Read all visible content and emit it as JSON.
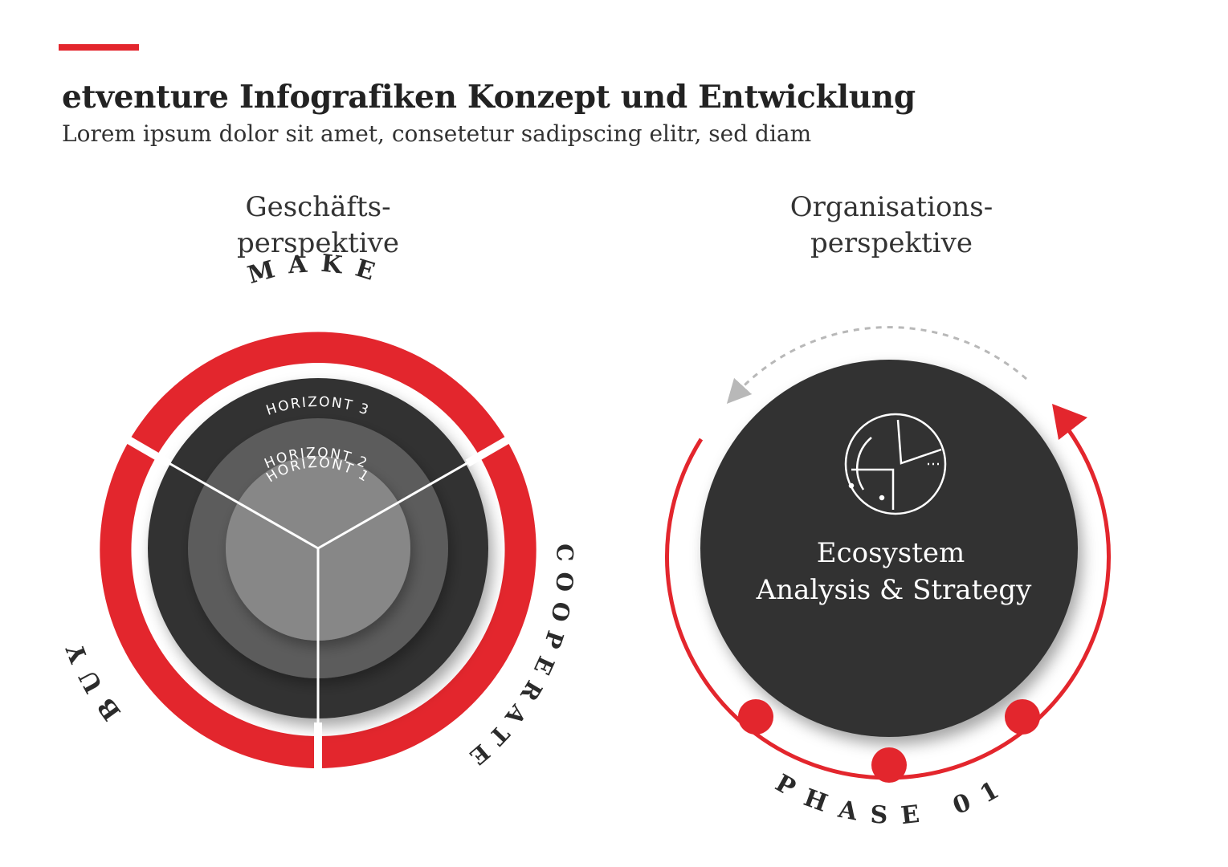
{
  "header": {
    "title": "etventure Infografiken Konzept und Entwicklung",
    "subtitle": "Lorem ipsum dolor sit amet, consetetur sadipscing elitr, sed diam"
  },
  "left_diagram": {
    "heading_line1": "Geschäfts-",
    "heading_line2": "perspektive",
    "segments": {
      "top": "MAKE",
      "right": "COOPERATE",
      "left": "BUY"
    },
    "horizons": [
      "HORIZONT 3",
      "HORIZONT 2",
      "HORIZONT 1"
    ]
  },
  "right_diagram": {
    "heading_line1": "Organisations-",
    "heading_line2": "perspektive",
    "center_line1": "Ecosystem",
    "center_line2": "Analysis & Strategy",
    "phase_label": "PHASE 01",
    "center_icon": "chart-analysis-icon"
  },
  "colors": {
    "accent": "#e3262d",
    "dark": "#333333",
    "mid": "#5b5b5b",
    "light": "#878787"
  }
}
